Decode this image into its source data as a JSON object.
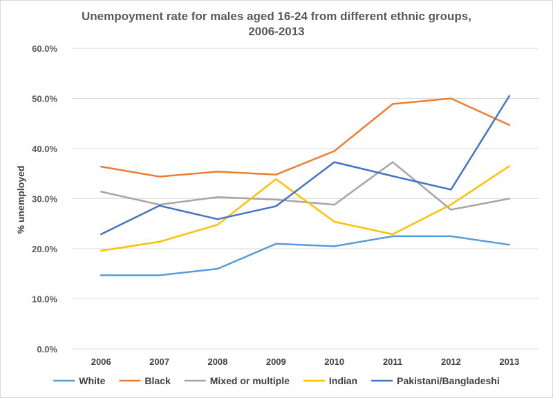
{
  "chart_data": {
    "type": "line",
    "title_lines": [
      "Unempoyment rate for males aged 16-24 from different ethnic groups,",
      "2006-2013"
    ],
    "ylabel": "% unemployed",
    "xlabel": "",
    "ylim": [
      0,
      60
    ],
    "y_ticks": [
      "0.0%",
      "10.0%",
      "20.0%",
      "30.0%",
      "40.0%",
      "50.0%",
      "60.0%"
    ],
    "y_tick_values": [
      0,
      10,
      20,
      30,
      40,
      50,
      60
    ],
    "categories": [
      "2006",
      "2007",
      "2008",
      "2009",
      "2010",
      "2011",
      "2012",
      "2013"
    ],
    "grid": true,
    "legend_position": "bottom",
    "series": [
      {
        "name": "White",
        "color": "#5b9bd5",
        "values": [
          14.7,
          14.7,
          16.0,
          21.0,
          20.5,
          22.5,
          22.5,
          20.8
        ]
      },
      {
        "name": "Black",
        "color": "#ed7d31",
        "values": [
          36.4,
          34.4,
          35.4,
          34.8,
          39.5,
          48.9,
          50.0,
          44.7
        ]
      },
      {
        "name": "Mixed or multiple",
        "color": "#a5a5a5",
        "values": [
          31.4,
          28.8,
          30.3,
          29.8,
          28.8,
          37.3,
          27.8,
          30.0
        ]
      },
      {
        "name": "Indian",
        "color": "#ffc000",
        "values": [
          19.6,
          21.4,
          24.8,
          33.9,
          25.4,
          22.9,
          28.8,
          36.5
        ]
      },
      {
        "name": "Pakistani/Bangladeshi",
        "color": "#4472c4",
        "values": [
          22.9,
          28.6,
          25.9,
          28.5,
          37.3,
          34.5,
          31.8,
          50.5
        ]
      }
    ]
  }
}
